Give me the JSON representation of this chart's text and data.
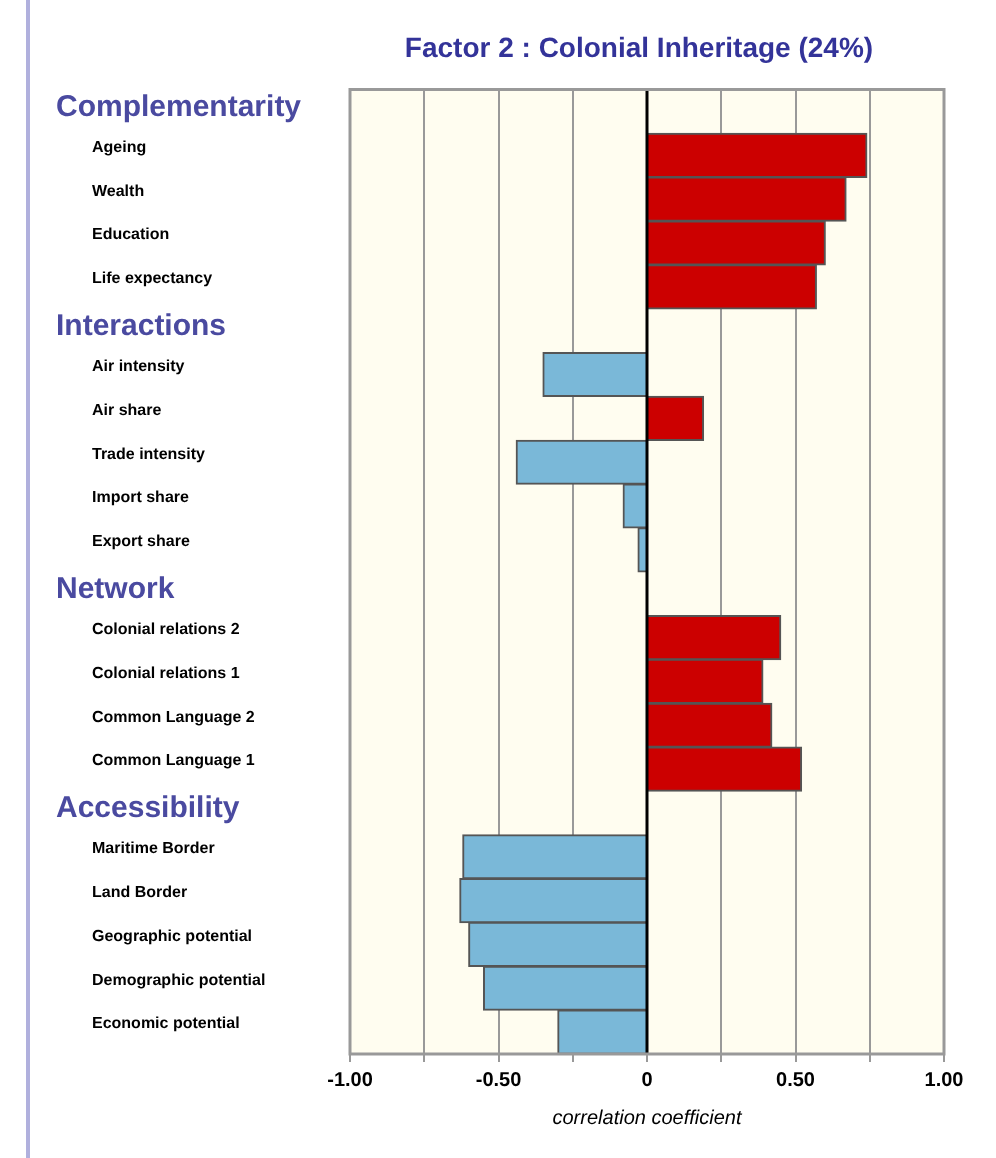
{
  "chart_data": {
    "type": "bar",
    "orientation": "horizontal",
    "title": "Factor 2 : Colonial Inheritage (24%)",
    "xlabel": "correlation coefficient",
    "annotations": [
      "Complementarity",
      "Interactions",
      "Network",
      "Accessibility"
    ],
    "categories": [
      null,
      "Ageing",
      "Wealth",
      "Education",
      "Life expectancy",
      null,
      "Air intensity",
      "Air share",
      "Trade intensity",
      "Import share",
      "Export share",
      null,
      "Colonial relations 2",
      "Colonial relations 1",
      "Common Language 2",
      "Common Language 1",
      null,
      "Maritime Border",
      "Land Border",
      "Geographic potential",
      "Demographic potential",
      "Economic potential"
    ],
    "values": [
      null,
      0.74,
      0.67,
      0.6,
      0.57,
      null,
      -0.35,
      0.19,
      -0.44,
      -0.08,
      -0.03,
      null,
      0.45,
      0.39,
      0.42,
      0.52,
      null,
      -0.62,
      -0.63,
      -0.6,
      -0.55,
      -0.3
    ],
    "colors": [
      null,
      "#cc0000",
      "#cc0000",
      "#cc0000",
      "#cc0000",
      null,
      "#7ab8d8",
      "#cc0000",
      "#7ab8d8",
      "#7ab8d8",
      "#7ab8d8",
      null,
      "#cc0000",
      "#cc0000",
      "#cc0000",
      "#cc0000",
      null,
      "#7ab8d8",
      "#7ab8d8",
      "#7ab8d8",
      "#7ab8d8",
      "#7ab8d8"
    ],
    "xlim": [
      -1,
      1
    ],
    "xticks": [
      {
        "value": -1,
        "label": "-1.00"
      },
      {
        "value": -0.75,
        "label": null
      },
      {
        "value": -0.5,
        "label": "-0.50"
      },
      {
        "value": -0.25,
        "label": null
      },
      0,
      {
        "value": 0.25,
        "label": null
      },
      {
        "value": 0.5,
        "label": "0.50"
      },
      {
        "value": 0.75,
        "label": null
      },
      {
        "value": 1,
        "label": "1.00"
      }
    ],
    "grid": "x",
    "legend": false
  }
}
